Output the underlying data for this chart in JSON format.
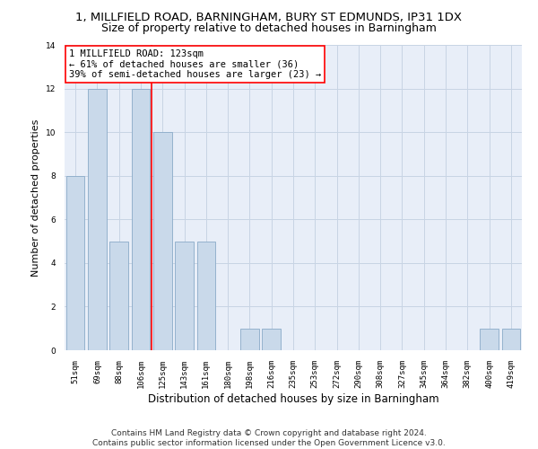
{
  "title_line1": "1, MILLFIELD ROAD, BARNINGHAM, BURY ST EDMUNDS, IP31 1DX",
  "title_line2": "Size of property relative to detached houses in Barningham",
  "xlabel": "Distribution of detached houses by size in Barningham",
  "ylabel": "Number of detached properties",
  "bar_labels": [
    "51sqm",
    "69sqm",
    "88sqm",
    "106sqm",
    "125sqm",
    "143sqm",
    "161sqm",
    "180sqm",
    "198sqm",
    "216sqm",
    "235sqm",
    "253sqm",
    "272sqm",
    "290sqm",
    "308sqm",
    "327sqm",
    "345sqm",
    "364sqm",
    "382sqm",
    "400sqm",
    "419sqm"
  ],
  "bar_values": [
    8,
    12,
    5,
    12,
    10,
    5,
    5,
    0,
    1,
    1,
    0,
    0,
    0,
    0,
    0,
    0,
    0,
    0,
    0,
    1,
    1
  ],
  "bar_color": "#c9d9ea",
  "bar_edgecolor": "#8aaac8",
  "vline_x": 3.5,
  "vline_color": "red",
  "annotation_text": "1 MILLFIELD ROAD: 123sqm\n← 61% of detached houses are smaller (36)\n39% of semi-detached houses are larger (23) →",
  "annotation_box_color": "white",
  "annotation_box_edgecolor": "red",
  "ylim": [
    0,
    14
  ],
  "yticks": [
    0,
    2,
    4,
    6,
    8,
    10,
    12,
    14
  ],
  "grid_color": "#c8d4e4",
  "background_color": "#e8eef8",
  "footer_line1": "Contains HM Land Registry data © Crown copyright and database right 2024.",
  "footer_line2": "Contains public sector information licensed under the Open Government Licence v3.0.",
  "title_fontsize": 9.5,
  "subtitle_fontsize": 9,
  "annotation_fontsize": 7.5,
  "footer_fontsize": 6.5,
  "ylabel_fontsize": 8,
  "xlabel_fontsize": 8.5,
  "tick_fontsize": 6.5
}
